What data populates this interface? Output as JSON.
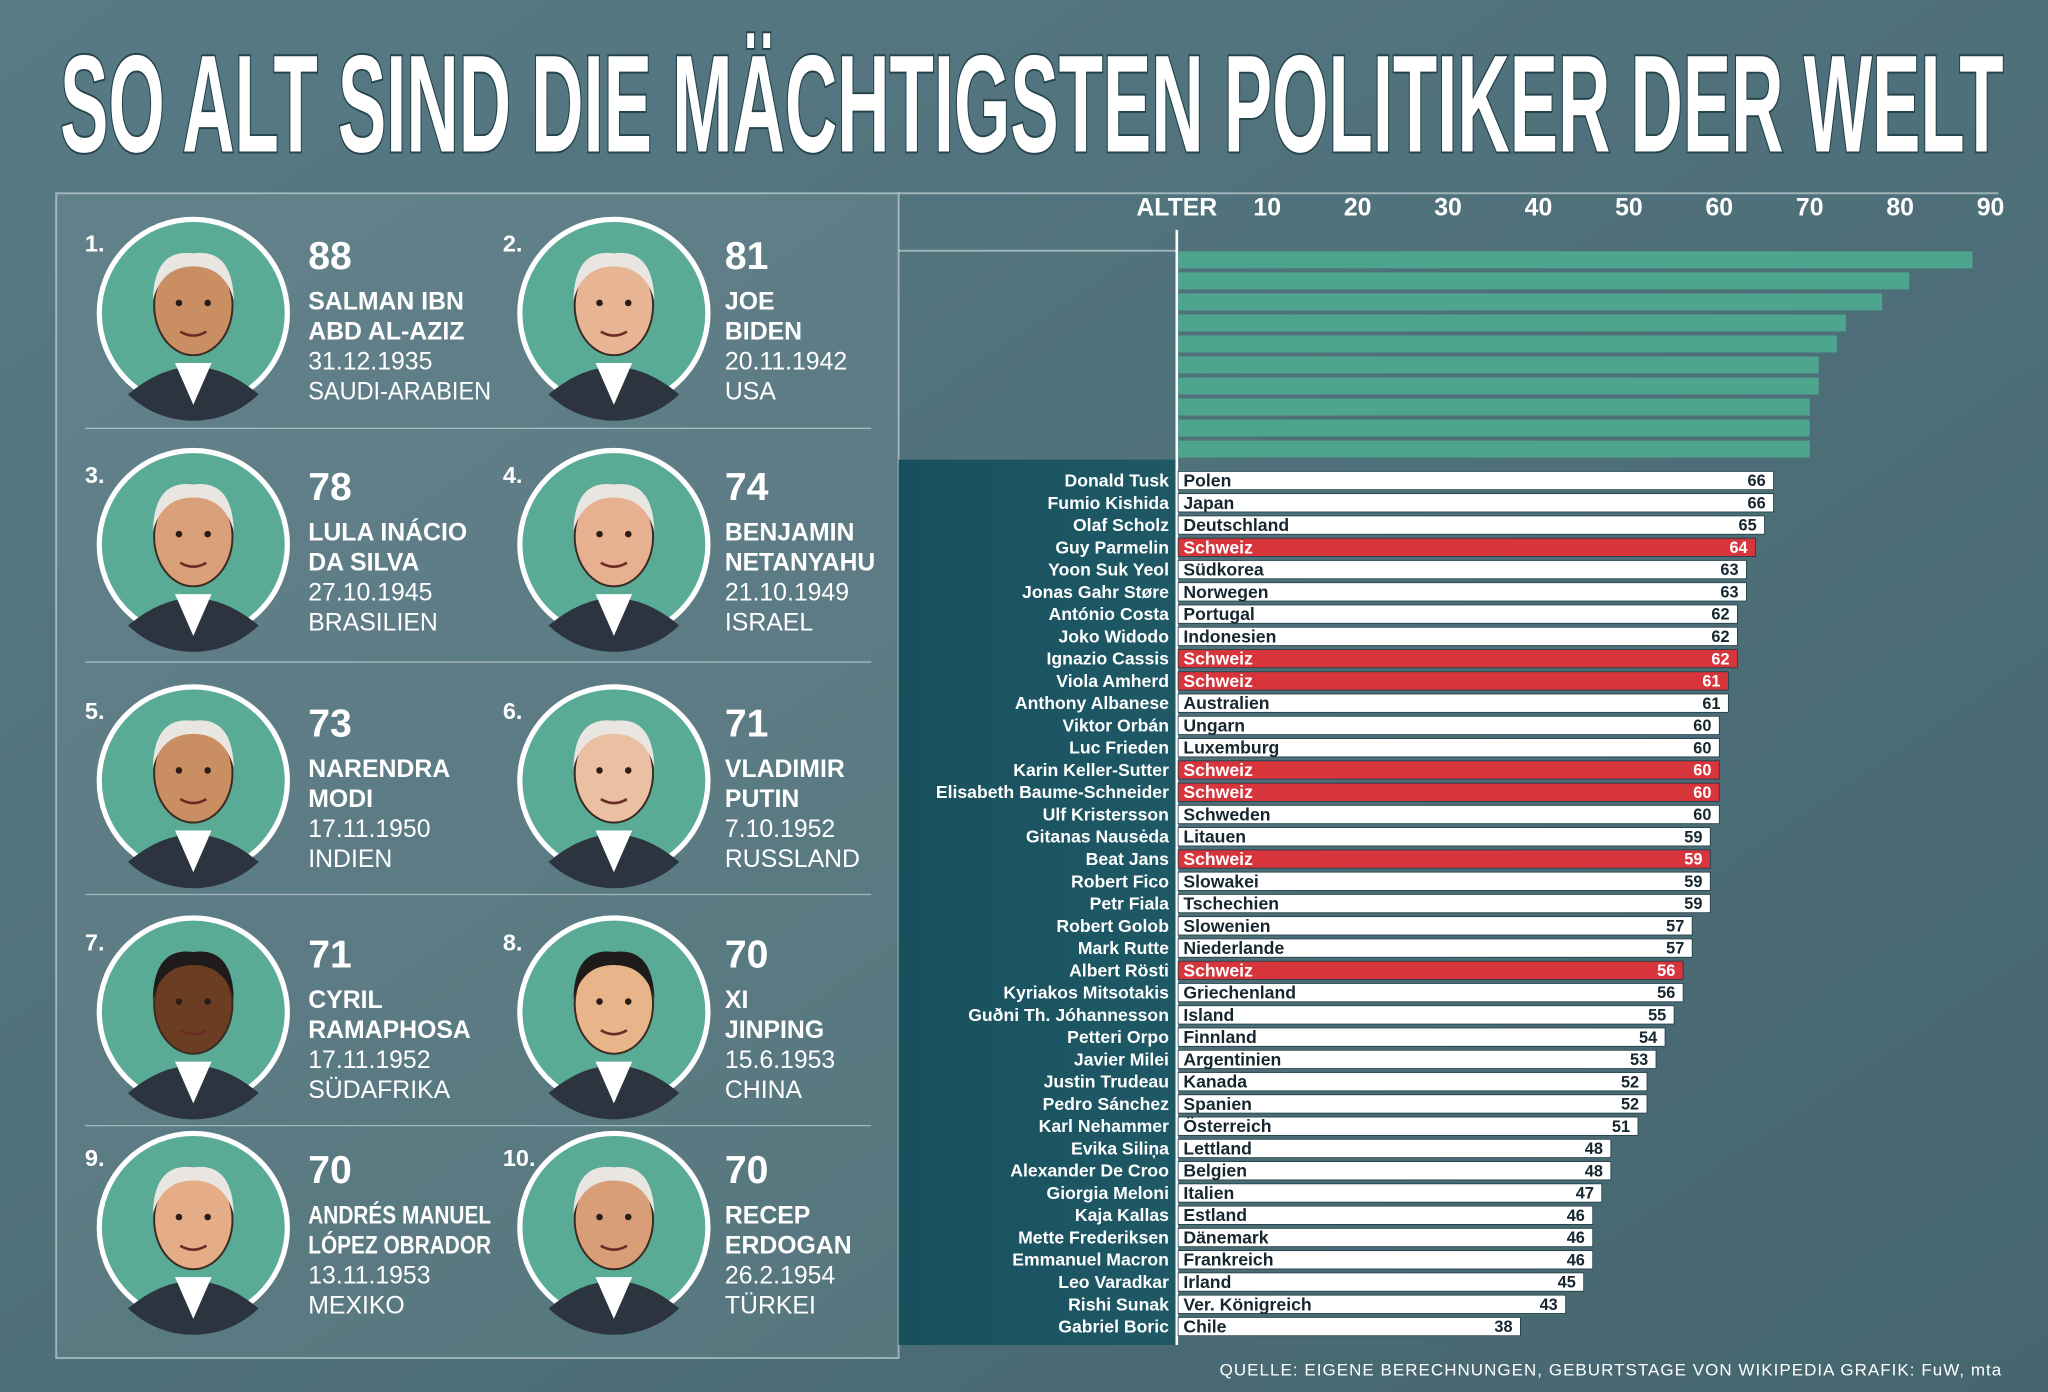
{
  "title": "SO ALT SIND DIE MÄCHTIGSTEN POLITIKER DER WELT",
  "leaders": [
    {
      "rank": "1.",
      "age": 88,
      "name": [
        "SALMAN IBN",
        "ABD AL-AZIZ"
      ],
      "born": "31.12.1935",
      "country": "SAUDI-ARABIEN"
    },
    {
      "rank": "2.",
      "age": 81,
      "name": [
        "JOE",
        "BIDEN"
      ],
      "born": "20.11.1942",
      "country": "USA"
    },
    {
      "rank": "3.",
      "age": 78,
      "name": [
        "LULA INÁCIO",
        "DA SILVA"
      ],
      "born": "27.10.1945",
      "country": "BRASILIEN"
    },
    {
      "rank": "4.",
      "age": 74,
      "name": [
        "BENJAMIN",
        "NETANYAHU"
      ],
      "born": "21.10.1949",
      "country": "ISRAEL"
    },
    {
      "rank": "5.",
      "age": 73,
      "name": [
        "NARENDRA",
        "MODI"
      ],
      "born": "17.11.1950",
      "country": "INDIEN"
    },
    {
      "rank": "6.",
      "age": 71,
      "name": [
        "VLADIMIR",
        "PUTIN"
      ],
      "born": "7.10.1952",
      "country": "RUSSLAND"
    },
    {
      "rank": "7.",
      "age": 71,
      "name": [
        "CYRIL",
        "RAMAPHOSA"
      ],
      "born": "17.11.1952",
      "country": "SÜDAFRIKA"
    },
    {
      "rank": "8.",
      "age": 70,
      "name": [
        "XI",
        "JINPING"
      ],
      "born": "15.6.1953",
      "country": "CHINA"
    },
    {
      "rank": "9.",
      "age": 70,
      "name": [
        "ANDRÉS MANUEL",
        "LÓPEZ OBRADOR"
      ],
      "born": "13.11.1953",
      "country": "MEXIKO"
    },
    {
      "rank": "10.",
      "age": 70,
      "name": [
        "RECEP",
        "ERDOGAN"
      ],
      "born": "26.2.1954",
      "country": "TÜRKEI"
    }
  ],
  "chart_data": {
    "type": "bar",
    "axis_label": "ALTER",
    "xlim": [
      0,
      90
    ],
    "xticks": [
      10,
      20,
      30,
      40,
      50,
      60,
      70,
      80,
      90
    ],
    "leader_color": "#4ea58e",
    "categories": [
      "Donald Tusk",
      "Fumio Kishida",
      "Olaf Scholz",
      "Guy Parmelin",
      "Yoon Suk Yeol",
      "Jonas Gahr Støre",
      "António Costa",
      "Joko Widodo",
      "Ignazio Cassis",
      "Viola Amherd",
      "Anthony Albanese",
      "Viktor Orbán",
      "Luc Frieden",
      "Karin Keller-Sutter",
      "Elisabeth Baume-Schneider",
      "Ulf Kristersson",
      "Gitanas Nausėda",
      "Beat Jans",
      "Robert Fico",
      "Petr Fiala",
      "Robert Golob",
      "Mark Rutte",
      "Albert Rösti",
      "Kyriakos Mitsotakis",
      "Guðni Th. Jóhannesson",
      "Petteri Orpo",
      "Javier Milei",
      "Justin Trudeau",
      "Pedro Sánchez",
      "Karl Nehammer",
      "Evika Siliņa",
      "Alexander De Croo",
      "Giorgia Meloni",
      "Kaja Kallas",
      "Mette Frederiksen",
      "Emmanuel Macron",
      "Leo Varadkar",
      "Rishi Sunak",
      "Gabriel Boric"
    ],
    "countries": [
      "Polen",
      "Japan",
      "Deutschland",
      "Schweiz",
      "Südkorea",
      "Norwegen",
      "Portugal",
      "Indonesien",
      "Schweiz",
      "Schweiz",
      "Australien",
      "Ungarn",
      "Luxemburg",
      "Schweiz",
      "Schweiz",
      "Schweden",
      "Litauen",
      "Schweiz",
      "Slowakei",
      "Tschechien",
      "Slowenien",
      "Niederlande",
      "Schweiz",
      "Griechenland",
      "Island",
      "Finnland",
      "Argentinien",
      "Kanada",
      "Spanien",
      "Österreich",
      "Lettland",
      "Belgien",
      "Italien",
      "Estland",
      "Dänemark",
      "Frankreich",
      "Irland",
      "Ver. Königreich",
      "Chile"
    ],
    "values": [
      66,
      66,
      65,
      64,
      63,
      63,
      62,
      62,
      62,
      61,
      61,
      60,
      60,
      60,
      60,
      60,
      59,
      59,
      59,
      59,
      57,
      57,
      56,
      56,
      55,
      54,
      53,
      52,
      52,
      51,
      48,
      48,
      47,
      46,
      46,
      46,
      45,
      43,
      38
    ],
    "colors": [
      "#ffffff",
      "#ffffff",
      "#ffffff",
      "#d7343c",
      "#ffffff",
      "#ffffff",
      "#ffffff",
      "#ffffff",
      "#d7343c",
      "#d7343c",
      "#ffffff",
      "#ffffff",
      "#ffffff",
      "#d7343c",
      "#d7343c",
      "#ffffff",
      "#ffffff",
      "#d7343c",
      "#ffffff",
      "#ffffff",
      "#ffffff",
      "#ffffff",
      "#d7343c",
      "#ffffff",
      "#ffffff",
      "#ffffff",
      "#ffffff",
      "#ffffff",
      "#ffffff",
      "#ffffff",
      "#ffffff",
      "#ffffff",
      "#ffffff",
      "#ffffff",
      "#ffffff",
      "#ffffff",
      "#ffffff",
      "#ffffff",
      "#ffffff"
    ]
  },
  "source": "QUELLE: EIGENE BERECHNUNGEN, GEBURTSTAGE VON WIKIPEDIA  GRAFIK: FuW, mta"
}
